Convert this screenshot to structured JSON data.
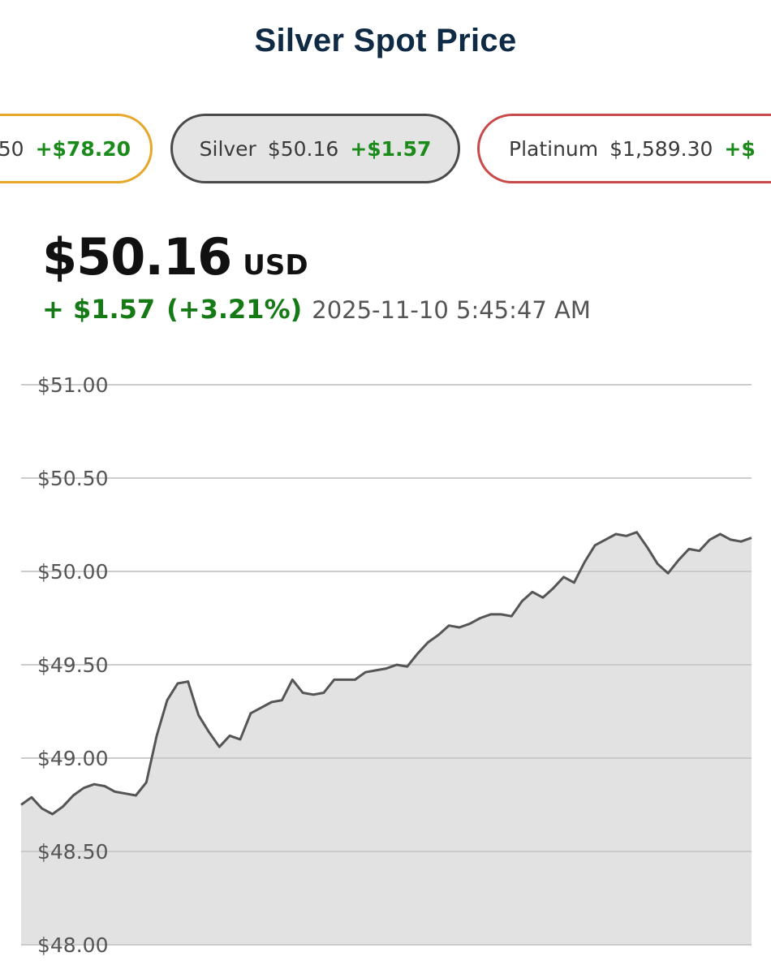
{
  "page": {
    "title": "Silver Spot Price"
  },
  "chips": [
    {
      "name": "",
      "price": ".50",
      "change": "+$78.20",
      "color": "#e6a72a"
    },
    {
      "name": "Silver",
      "price": "$50.16",
      "change": "+$1.57",
      "color": "#4a4a4a"
    },
    {
      "name": "Platinum",
      "price": "$1,589.30",
      "change": "+$",
      "color": "#c94a4a"
    }
  ],
  "quote": {
    "price": "$50.16",
    "currency": "USD",
    "change": "+ $1.57",
    "change_pct": "(+3.21%)",
    "timestamp": "2025-11-10 5:45:47 AM",
    "positive_color": "#157a15"
  },
  "chart_data": {
    "type": "area",
    "title": "",
    "xlabel": "",
    "ylabel": "",
    "ylim": [
      48.0,
      51.0
    ],
    "yticks": [
      51.0,
      50.5,
      50.0,
      49.5,
      49.0,
      48.5,
      48.0
    ],
    "ytick_labels": [
      "$51.00",
      "$50.50",
      "$50.00",
      "$49.50",
      "$49.00",
      "$48.50",
      "$48.00"
    ],
    "grid": true,
    "line_color": "#555555",
    "fill_color": "#e2e2e2",
    "series": [
      {
        "values": [
          48.75,
          48.79,
          48.73,
          48.7,
          48.74,
          48.8,
          48.84,
          48.86,
          48.85,
          48.82,
          48.81,
          48.8,
          48.87,
          49.12,
          49.31,
          49.4,
          49.41,
          49.23,
          49.14,
          49.06,
          49.12,
          49.1,
          49.24,
          49.27,
          49.3,
          49.31,
          49.42,
          49.35,
          49.34,
          49.35,
          49.42,
          49.42,
          49.42,
          49.46,
          49.47,
          49.48,
          49.5,
          49.49,
          49.56,
          49.62,
          49.66,
          49.71,
          49.7,
          49.72,
          49.75,
          49.77,
          49.77,
          49.76,
          49.84,
          49.89,
          49.86,
          49.91,
          49.97,
          49.94,
          50.05,
          50.14,
          50.17,
          50.2,
          50.19,
          50.21,
          50.13,
          50.04,
          49.99,
          50.06,
          50.12,
          50.11,
          50.17,
          50.2,
          50.17,
          50.16,
          50.18
        ]
      }
    ]
  }
}
